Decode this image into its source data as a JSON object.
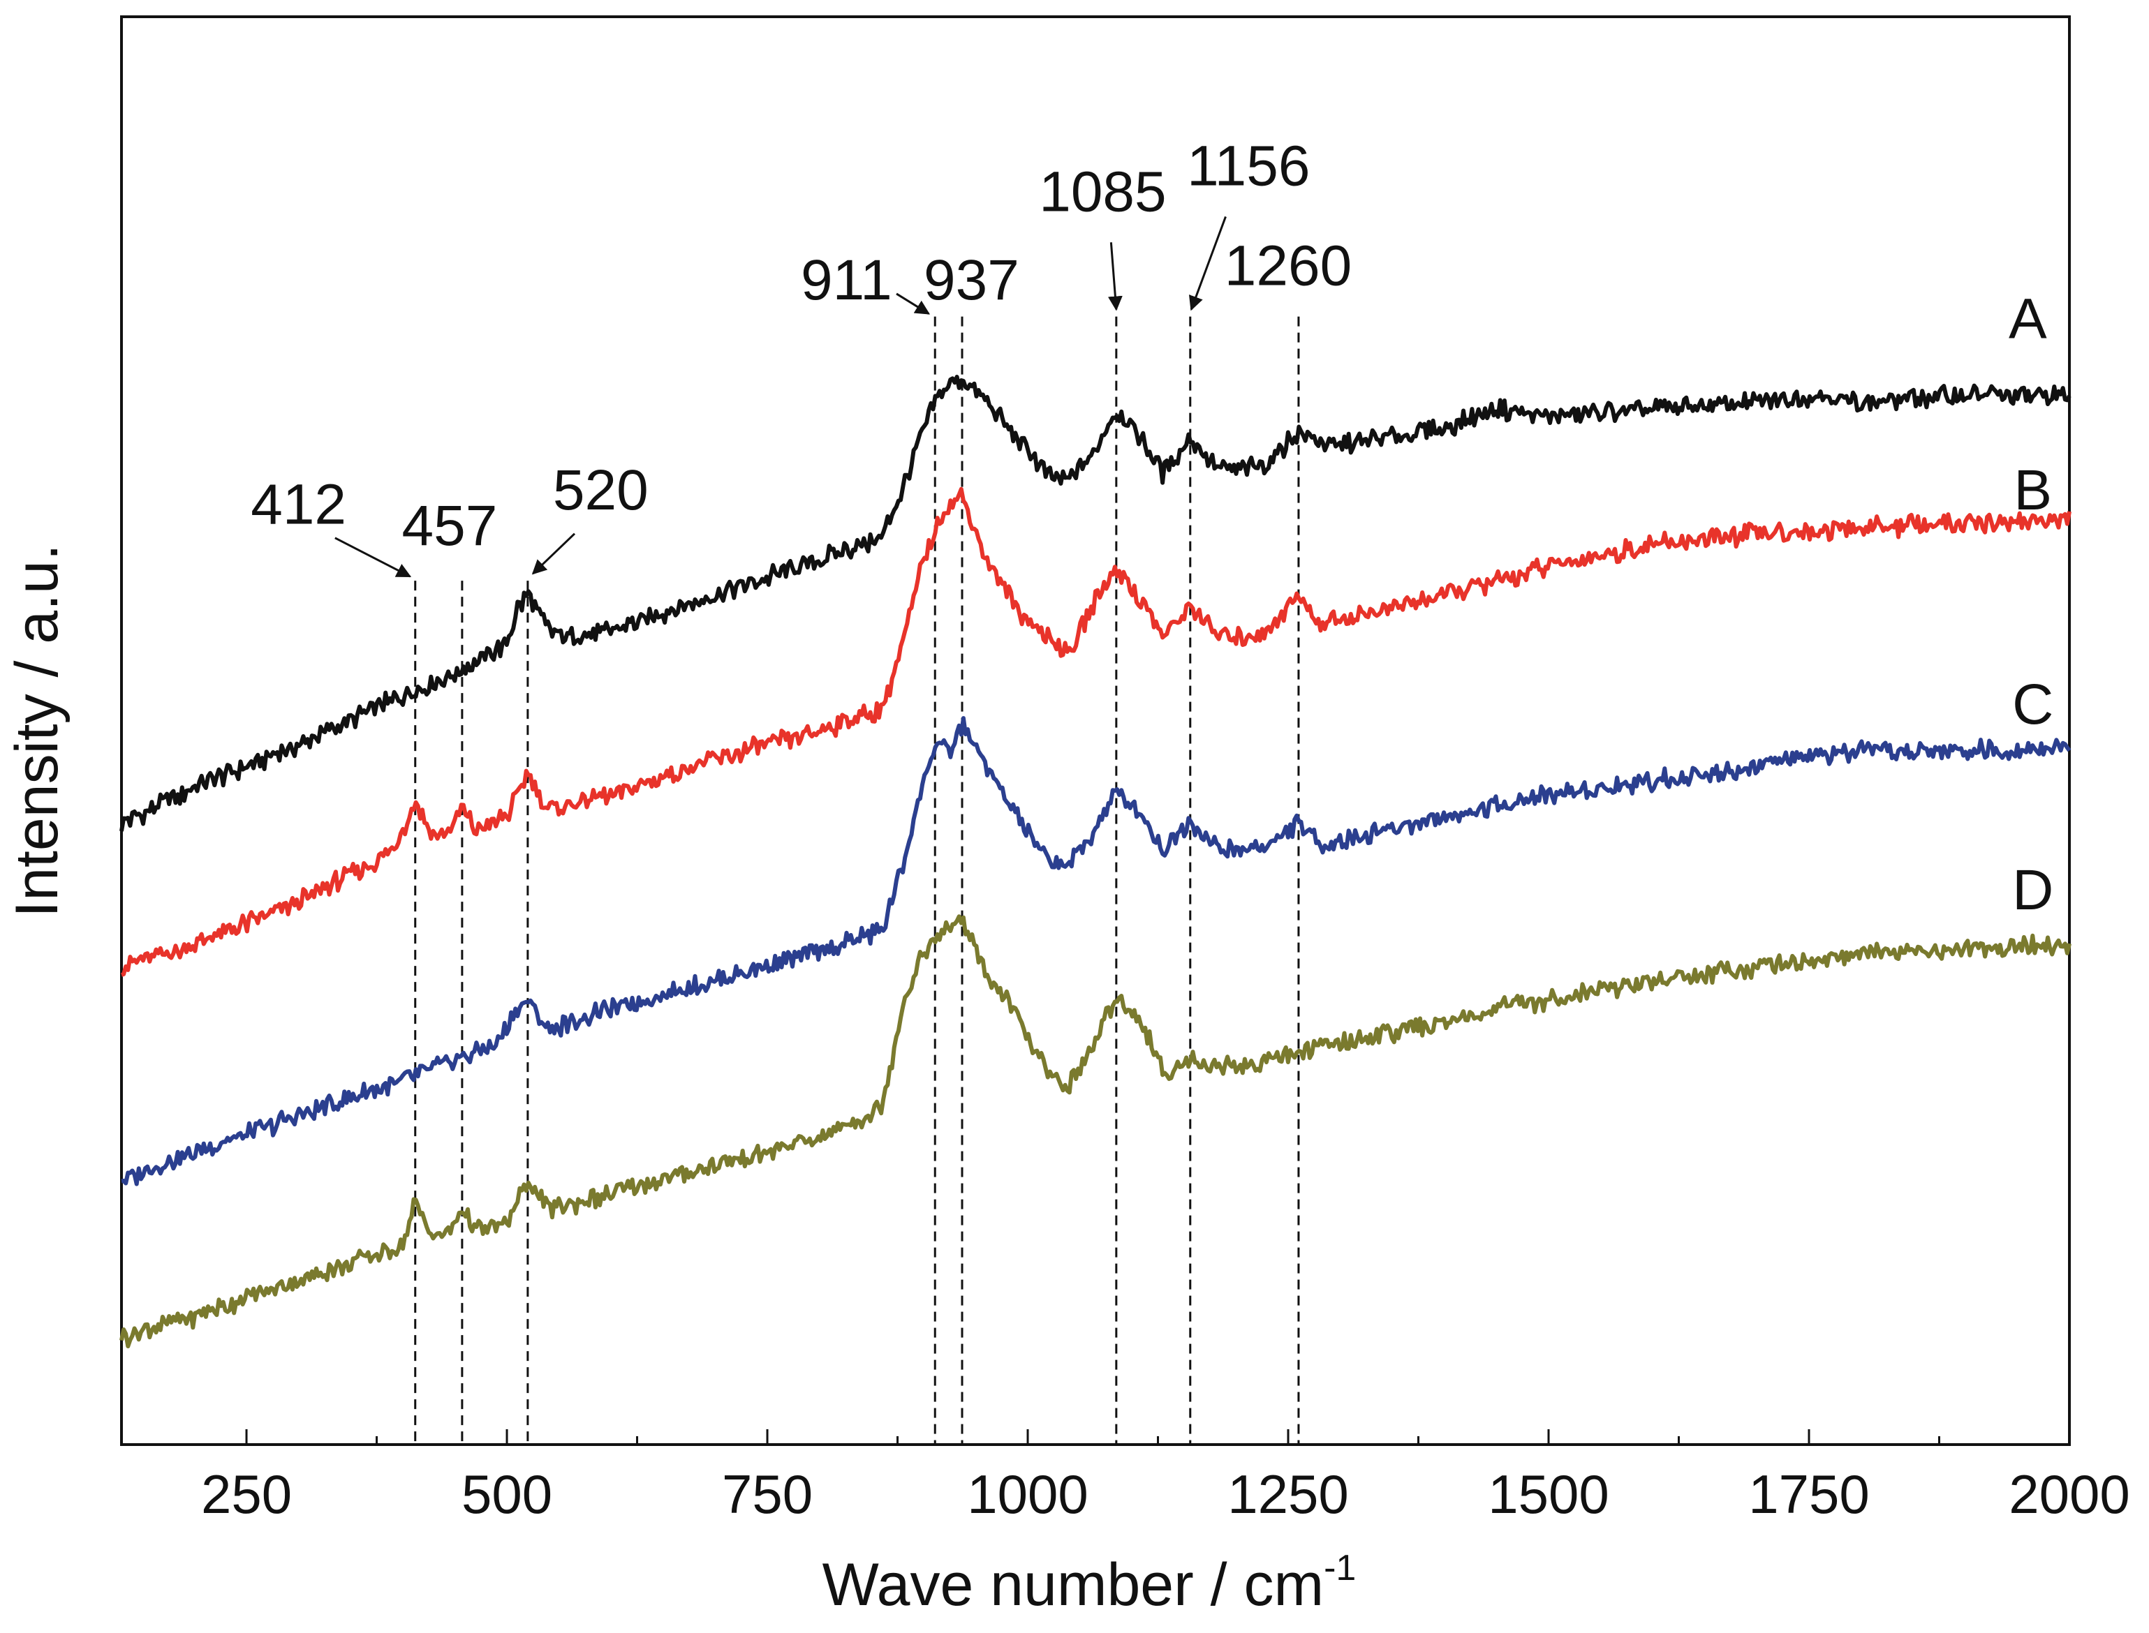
{
  "chart_data": {
    "type": "line",
    "xlabel": "Wave number / cm",
    "xlabel_superscript": "-1",
    "ylabel": "Intensity / a.u.",
    "xlim": [
      130,
      2000
    ],
    "ylim": [
      0,
      100
    ],
    "x_ticks": [
      250,
      500,
      750,
      1000,
      1250,
      1500,
      1750,
      2000
    ],
    "x_tick_labels": [
      "250",
      "500",
      "750",
      "1000",
      "1250",
      "1500",
      "1750",
      "2000"
    ],
    "x_minor_ticks": [
      375,
      625,
      875,
      1125,
      1375,
      1625,
      1875
    ],
    "y_ticks_shown": false,
    "grid": false,
    "peaks": [
      {
        "label": "412",
        "x": 412,
        "top": 60.5,
        "label_x": 300,
        "label_y": 64.5,
        "arrow": [
          [
            335,
            63.5
          ],
          [
            407,
            60.8
          ]
        ]
      },
      {
        "label": "457",
        "x": 457,
        "top": 60.5,
        "label_x": 445,
        "label_y": 63.0,
        "arrow": null
      },
      {
        "label": "520",
        "x": 520,
        "top": 60.5,
        "label_x": 590,
        "label_y": 65.5,
        "arrow": [
          [
            565,
            63.8
          ],
          [
            525,
            61.0
          ]
        ]
      },
      {
        "label": "911",
        "x": 911,
        "top": 79.0,
        "label_x": 826,
        "label_y": 80.2,
        "arrow": [
          [
            874,
            80.6
          ],
          [
            905,
            79.2
          ]
        ]
      },
      {
        "label": "937",
        "x": 937,
        "top": 79.0,
        "label_x": 946,
        "label_y": 80.2,
        "arrow": null
      },
      {
        "label": "1085",
        "x": 1085,
        "top": 79.0,
        "label_x": 1072,
        "label_y": 86.4,
        "arrow": [
          [
            1080,
            84.2
          ],
          [
            1085,
            79.5
          ]
        ]
      },
      {
        "label": "1156",
        "x": 1156,
        "top": 79.0,
        "label_x": 1212,
        "label_y": 88.2,
        "arrow": [
          [
            1190,
            86.0
          ],
          [
            1157,
            79.5
          ]
        ]
      },
      {
        "label": "1260",
        "x": 1260,
        "top": 79.0,
        "label_x": 1250,
        "label_y": 81.2,
        "arrow": null
      }
    ],
    "series": [
      {
        "name": "A",
        "color": "#111111",
        "label_x": 1960,
        "label_y": 77.5,
        "x": [
          130,
          200,
          300,
          400,
          450,
          500,
          510,
          520,
          540,
          560,
          600,
          700,
          800,
          860,
          880,
          900,
          911,
          925,
          937,
          960,
          990,
          1020,
          1040,
          1060,
          1085,
          1110,
          1130,
          1156,
          1180,
          1200,
          1230,
          1260,
          1280,
          1300,
          1400,
          1450,
          1500,
          1600,
          1700,
          1760,
          1800,
          1900,
          2000
        ],
        "values": [
          43.5,
          46.0,
          49.0,
          52.5,
          54.0,
          56.0,
          58.5,
          59.5,
          57.0,
          56.5,
          57.0,
          59.5,
          62.0,
          63.5,
          67.0,
          71.0,
          73.0,
          74.5,
          74.5,
          73.0,
          70.5,
          67.8,
          67.6,
          69.0,
          72.5,
          70.5,
          68.0,
          70.5,
          68.5,
          68.2,
          68.8,
          71.0,
          70.2,
          70.0,
          71.2,
          72.5,
          72.0,
          72.5,
          73.0,
          73.5,
          73.0,
          73.5,
          73.5
        ]
      },
      {
        "name": "B",
        "color": "#e8332a",
        "label_x": 1965,
        "label_y": 65.5,
        "x": [
          130,
          200,
          300,
          390,
          412,
          430,
          445,
          457,
          470,
          500,
          520,
          540,
          600,
          700,
          800,
          860,
          880,
          900,
          920,
          937,
          960,
          990,
          1020,
          1040,
          1060,
          1085,
          1110,
          1130,
          1156,
          1180,
          1200,
          1230,
          1260,
          1280,
          1300,
          1400,
          1500,
          1600,
          1700,
          1800,
          1900,
          2000
        ],
        "values": [
          33.5,
          35.0,
          38.0,
          41.5,
          45.0,
          42.5,
          43.0,
          44.5,
          43.0,
          44.0,
          47.0,
          44.5,
          45.5,
          48.0,
          50.0,
          51.5,
          56.0,
          62.0,
          65.5,
          66.5,
          62.0,
          58.5,
          56.5,
          55.5,
          58.5,
          61.5,
          59.0,
          56.5,
          58.8,
          56.8,
          56.5,
          57.0,
          59.5,
          57.5,
          57.8,
          59.5,
          61.5,
          63.0,
          63.8,
          64.2,
          64.5,
          64.8
        ]
      },
      {
        "name": "C",
        "color": "#2b3f8f",
        "label_x": 1965,
        "label_y": 50.5,
        "x": [
          130,
          200,
          300,
          400,
          450,
          490,
          510,
          520,
          540,
          560,
          600,
          700,
          800,
          860,
          880,
          900,
          911,
          925,
          937,
          960,
          990,
          1020,
          1040,
          1060,
          1085,
          1110,
          1130,
          1156,
          1180,
          1200,
          1230,
          1260,
          1280,
          1300,
          1400,
          1500,
          1600,
          1700,
          1760,
          1800,
          1900,
          2000
        ],
        "values": [
          18.5,
          20.5,
          23.0,
          25.5,
          27.0,
          28.0,
          30.5,
          31.0,
          29.0,
          29.5,
          30.5,
          32.5,
          34.5,
          36.0,
          40.5,
          46.5,
          49.0,
          48.5,
          50.5,
          47.5,
          44.0,
          40.8,
          40.6,
          42.5,
          45.8,
          44.2,
          41.5,
          43.8,
          41.8,
          41.5,
          42.0,
          43.5,
          42.0,
          42.3,
          44.0,
          45.5,
          46.5,
          47.5,
          48.3,
          48.5,
          48.6,
          48.8
        ]
      },
      {
        "name": "D",
        "color": "#7a7a2e",
        "label_x": 1965,
        "label_y": 37.5,
        "x": [
          130,
          200,
          300,
          400,
          412,
          430,
          445,
          457,
          470,
          500,
          520,
          540,
          600,
          700,
          800,
          860,
          880,
          900,
          920,
          937,
          960,
          990,
          1020,
          1040,
          1060,
          1085,
          1110,
          1130,
          1156,
          1180,
          1200,
          1230,
          1260,
          1280,
          1300,
          1400,
          1450,
          1500,
          1600,
          1700,
          1800,
          1900,
          2000
        ],
        "values": [
          7.5,
          9.0,
          11.5,
          14.0,
          17.0,
          14.5,
          15.0,
          16.5,
          15.0,
          15.5,
          18.5,
          16.5,
          17.5,
          19.5,
          21.5,
          23.5,
          31.0,
          34.5,
          36.0,
          36.8,
          33.0,
          30.0,
          25.8,
          25.2,
          27.5,
          31.5,
          29.5,
          26.0,
          27.0,
          26.5,
          26.5,
          27.0,
          27.5,
          27.8,
          28.2,
          29.5,
          30.5,
          31.2,
          32.5,
          33.5,
          34.3,
          34.8,
          35.0
        ]
      }
    ]
  }
}
